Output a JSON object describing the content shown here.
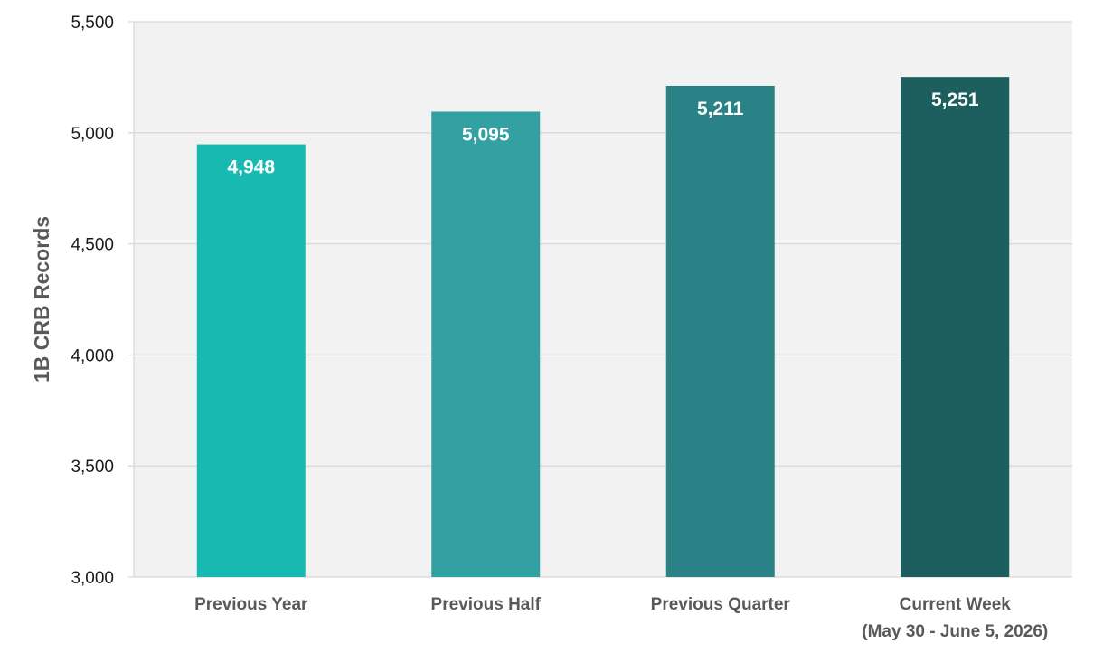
{
  "chart_data": {
    "type": "bar",
    "title": "",
    "xlabel": "",
    "ylabel": "1B CRB Records",
    "ylim": [
      3000,
      5500
    ],
    "yticks": [
      3000,
      3500,
      4000,
      4500,
      5000,
      5500
    ],
    "ytick_labels": [
      "3,000",
      "3,500",
      "4,000",
      "4,500",
      "5,000",
      "5,500"
    ],
    "grid": true,
    "legend": "none",
    "plot_background": "#f2f2f2",
    "gridline_color": "#d9d9d9",
    "categories": [
      [
        "Previous Year"
      ],
      [
        "Previous Half"
      ],
      [
        "Previous Quarter"
      ],
      [
        "Current Week",
        "(May 30 - June 5, 2026)"
      ]
    ],
    "values": [
      4948,
      5095,
      5211,
      5251
    ],
    "value_labels": [
      "4,948",
      "5,095",
      "5,211",
      "5,251"
    ],
    "colors": [
      "#17b9b1",
      "#33a0a2",
      "#2a8286",
      "#1c5f5e"
    ]
  }
}
